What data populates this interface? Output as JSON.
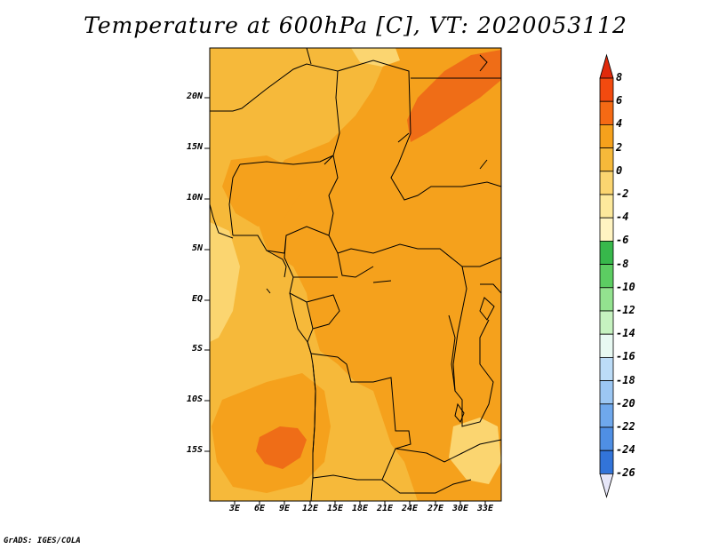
{
  "title": "Temperature at 600hPa [C], VT: 2020053112",
  "credit": "GrADS: IGES/COLA",
  "map": {
    "lat_labels": [
      "20N",
      "15N",
      "10N",
      "5N",
      "EQ",
      "5S",
      "10S",
      "15S"
    ],
    "lon_labels": [
      "3E",
      "6E",
      "9E",
      "12E",
      "15E",
      "18E",
      "21E",
      "24E",
      "27E",
      "30E",
      "33E"
    ],
    "field_colors": {
      "base": "#f6b93a",
      "warm_2_4": "#f5a11c",
      "warm_4_6": "#ef6d17",
      "cool_0_2": "#fbd570"
    }
  },
  "colorbar": {
    "ticks": [
      "8",
      "6",
      "4",
      "2",
      "0",
      "-2",
      "-4",
      "-6",
      "-8",
      "-10",
      "-12",
      "-14",
      "-16",
      "-18",
      "-20",
      "-22",
      "-24",
      "-26"
    ],
    "top_color": "#e02a0c",
    "bottom_color": "#e6e6f8",
    "bins": [
      "#f24a0f",
      "#f56a14",
      "#f5a11c",
      "#f6b93a",
      "#fbd570",
      "#fde99c",
      "#fff4c2",
      "#37b84b",
      "#5ccd62",
      "#93e28f",
      "#c6f2c0",
      "#e8f9f2",
      "#bcdcf7",
      "#9cc7f3",
      "#6fa8ec",
      "#4f8fe4",
      "#3274d9",
      "#1f5ecb",
      "#1346b1",
      "#0c2f8c",
      "#0a1e66"
    ]
  }
}
